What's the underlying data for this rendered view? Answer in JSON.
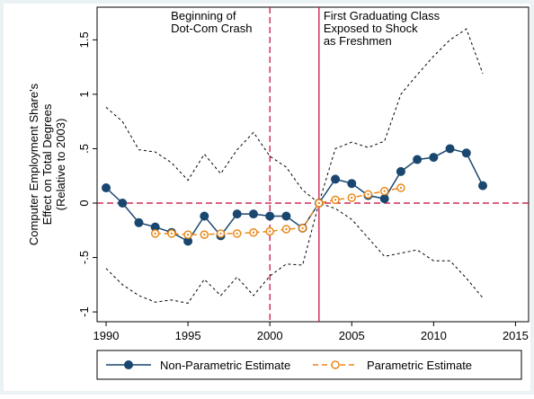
{
  "chart_data": {
    "type": "line",
    "y_label_lines": [
      "Computer Employment Share's",
      "Effect on Total Degrees",
      "(Relative to 2003)"
    ],
    "xlim": [
      1989.45,
      2015.8
    ],
    "xticks": [
      1990,
      1995,
      2000,
      2005,
      2010,
      2015
    ],
    "ylim": [
      -1.09,
      1.8
    ],
    "yticks": [
      {
        "value": -1,
        "label": "-1"
      },
      {
        "value": -0.5,
        "label": "-.5"
      },
      0,
      {
        "value": 0.5,
        "label": ".5"
      },
      1,
      1.5
    ],
    "series": [
      {
        "name": "Non-Parametric Estimate",
        "color": "#1a476f",
        "style": "solid",
        "marker": "filled",
        "x": [
          1990,
          1991,
          1992,
          1993,
          1994,
          1995,
          1996,
          1997,
          1998,
          1999,
          2000,
          2001,
          2002,
          2003,
          2004,
          2005,
          2006,
          2007,
          2008,
          2009,
          2010,
          2011,
          2012,
          2013
        ],
        "values": [
          0.14,
          0.0,
          -0.18,
          -0.22,
          -0.27,
          -0.35,
          -0.12,
          -0.3,
          -0.1,
          -0.1,
          -0.12,
          -0.12,
          -0.23,
          0,
          0.22,
          0.18,
          0.07,
          0.04,
          0.29,
          0.4,
          0.42,
          0.5,
          0.46,
          0.16
        ]
      },
      {
        "name": "Parametric Estimate",
        "color": "#e8891a",
        "style": "dashed",
        "marker": "hollow",
        "x": [
          1993,
          1994,
          1995,
          1996,
          1997,
          1998,
          1999,
          2000,
          2001,
          2002,
          2003,
          2004,
          2005,
          2006,
          2007,
          2008
        ],
        "values": [
          -0.28,
          -0.28,
          -0.29,
          -0.29,
          -0.28,
          -0.28,
          -0.27,
          -0.26,
          -0.24,
          -0.23,
          0,
          0.03,
          0.05,
          0.08,
          0.11,
          0.14
        ]
      }
    ],
    "ci": {
      "color": "#000000",
      "x": [
        1990,
        1991,
        1992,
        1993,
        1994,
        1995,
        1996,
        1997,
        1998,
        1999,
        2000,
        2001,
        2002,
        2003,
        2004,
        2005,
        2006,
        2007,
        2008,
        2009,
        2010,
        2011,
        2012,
        2013
      ],
      "upper": [
        0.88,
        0.75,
        0.49,
        0.47,
        0.37,
        0.21,
        0.45,
        0.27,
        0.49,
        0.65,
        0.43,
        0.33,
        0.12,
        0,
        0.5,
        0.56,
        0.51,
        0.57,
        1.0,
        1.18,
        1.35,
        1.5,
        1.6,
        1.19
      ],
      "lower": [
        -0.6,
        -0.75,
        -0.85,
        -0.91,
        -0.89,
        -0.92,
        -0.7,
        -0.85,
        -0.68,
        -0.85,
        -0.67,
        -0.56,
        -0.57,
        0,
        -0.05,
        -0.15,
        -0.32,
        -0.49,
        -0.46,
        -0.43,
        -0.53,
        -0.53,
        -0.69,
        -0.87
      ]
    },
    "reference_y": 0,
    "reference_color": "#c10534",
    "annotations": [
      {
        "x": 2000,
        "style": "dashed",
        "lines": [
          "Beginning of",
          "Dot-Com Crash"
        ]
      },
      {
        "x": 2003,
        "style": "solid",
        "lines": [
          "First Graduating Class",
          "Exposed to Shock",
          "as Freshmen"
        ]
      }
    ]
  }
}
